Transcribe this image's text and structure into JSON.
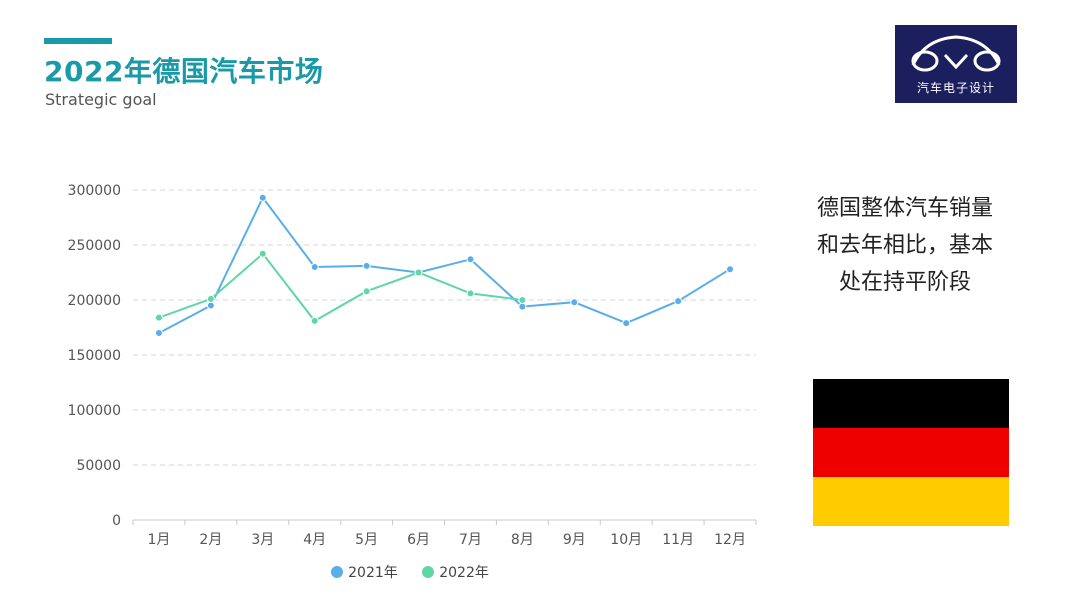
{
  "header": {
    "title": "2022年德国汽车市场",
    "subtitle": "Strategic goal",
    "accent_color": "#1a9aa8"
  },
  "logo": {
    "text": "汽车电子设计",
    "background": "#1c1f5e"
  },
  "side_note": {
    "lines": [
      "德国整体汽车销量",
      "和去年相比，基本",
      "处在持平阶段"
    ]
  },
  "flag": {
    "colors": [
      "#000000",
      "#ee0000",
      "#ffcc00"
    ]
  },
  "chart_data": {
    "type": "line",
    "categories": [
      "1月",
      "2月",
      "3月",
      "4月",
      "5月",
      "6月",
      "7月",
      "8月",
      "9月",
      "10月",
      "11月",
      "12月"
    ],
    "series": [
      {
        "name": "2021年",
        "color": "#5aaee8",
        "values": [
          170000,
          195000,
          293000,
          230000,
          231000,
          225000,
          237000,
          194000,
          198000,
          179000,
          199000,
          228000
        ]
      },
      {
        "name": "2022年",
        "color": "#5ed6a6",
        "values": [
          184000,
          201000,
          242000,
          181000,
          208000,
          225000,
          206000,
          200000,
          null,
          null,
          null,
          null
        ]
      }
    ],
    "y_ticks": [
      0,
      50000,
      100000,
      150000,
      200000,
      250000,
      300000
    ],
    "ylim": [
      0,
      300000
    ],
    "grid": true,
    "legend": "bottom-center"
  }
}
